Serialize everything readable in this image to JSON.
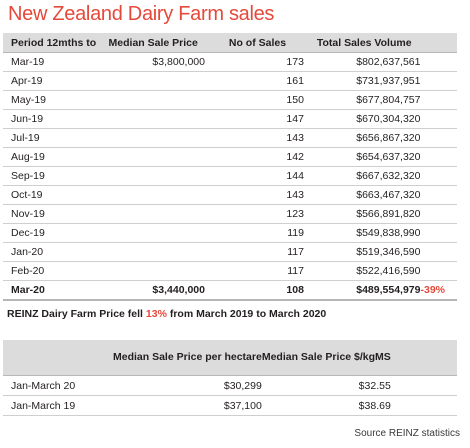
{
  "title": "New Zealand Dairy Farm sales",
  "sales_table": {
    "headers": {
      "period": "Period 12mths to",
      "median": "Median Sale Price",
      "count": "No of Sales",
      "volume": "Total Sales Volume"
    },
    "rows": [
      {
        "period": "Mar-19",
        "median": "$3,800,000",
        "count": "173",
        "volume": "$802,637,561",
        "change": ""
      },
      {
        "period": "Apr-19",
        "median": "",
        "count": "161",
        "volume": "$731,937,951",
        "change": ""
      },
      {
        "period": "May-19",
        "median": "",
        "count": "150",
        "volume": "$677,804,757",
        "change": ""
      },
      {
        "period": "Jun-19",
        "median": "",
        "count": "147",
        "volume": "$670,304,320",
        "change": ""
      },
      {
        "period": "Jul-19",
        "median": "",
        "count": "143",
        "volume": "$656,867,320",
        "change": ""
      },
      {
        "period": "Aug-19",
        "median": "",
        "count": "142",
        "volume": "$654,637,320",
        "change": ""
      },
      {
        "period": "Sep-19",
        "median": "",
        "count": "144",
        "volume": "$667,632,320",
        "change": ""
      },
      {
        "period": "Oct-19",
        "median": "",
        "count": "143",
        "volume": "$663,467,320",
        "change": ""
      },
      {
        "period": "Nov-19",
        "median": "",
        "count": "123",
        "volume": "$566,891,820",
        "change": ""
      },
      {
        "period": "Dec-19",
        "median": "",
        "count": "119",
        "volume": "$549,838,990",
        "change": ""
      },
      {
        "period": "Jan-20",
        "median": "",
        "count": "117",
        "volume": "$519,346,590",
        "change": ""
      },
      {
        "period": "Feb-20",
        "median": "",
        "count": "117",
        "volume": "$522,416,590",
        "change": ""
      },
      {
        "period": "Mar-20",
        "median": "$3,440,000",
        "count": "108",
        "volume": "$489,554,979",
        "change": "-39%"
      }
    ]
  },
  "note": {
    "prefix": "REINZ Dairy Farm Price fell ",
    "highlight": "13%",
    "suffix": " from March 2019 to March 2020"
  },
  "price_table": {
    "headers": {
      "period": "",
      "per_hectare": "Median Sale Price per hectare",
      "per_kgms": "Median Sale Price $/kgMS"
    },
    "rows": [
      {
        "period": "Jan-March 20",
        "per_hectare": "$30,299",
        "per_kgms": "$32.55"
      },
      {
        "period": "Jan-March 19",
        "per_hectare": "$37,100",
        "per_kgms": "$38.69"
      }
    ]
  },
  "source": "Source REINZ statistics",
  "colors": {
    "accent": "#e5493a",
    "header_bg": "#dcdcdc"
  }
}
